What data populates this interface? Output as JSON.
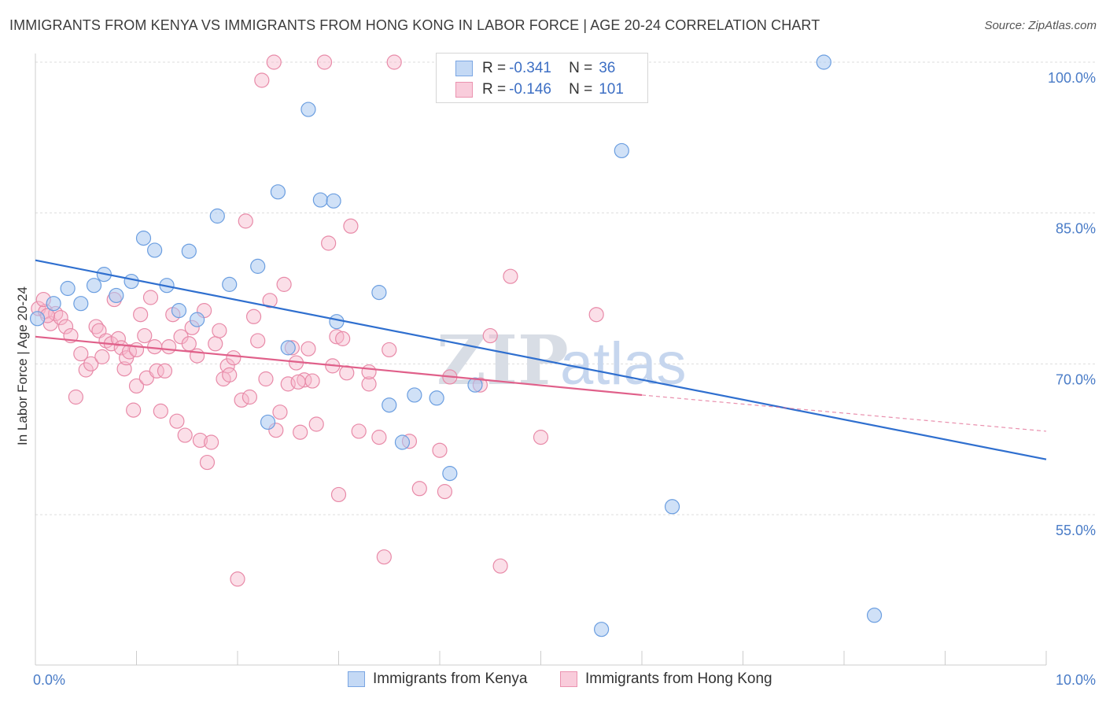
{
  "header": {
    "title": "IMMIGRANTS FROM KENYA VS IMMIGRANTS FROM HONG KONG IN LABOR FORCE | AGE 20-24 CORRELATION CHART",
    "source": "Source: ZipAtlas.com"
  },
  "watermark": {
    "zip": "ZIP",
    "atlas": "atlas"
  },
  "legend": {
    "kenya": {
      "r_label": "R =",
      "r_value": "-0.341",
      "n_label": "N =",
      "n_value": "36"
    },
    "hongkong": {
      "r_label": "R =",
      "r_value": "-0.146",
      "n_label": "N =",
      "n_value": "101"
    }
  },
  "bottom_legend": {
    "kenya": "Immigrants from Kenya",
    "hongkong": "Immigrants from Hong Kong"
  },
  "colors": {
    "kenya_fill": "#aac8f0",
    "kenya_stroke": "#6b9ee0",
    "kenya_line": "#2f6fcf",
    "hk_fill": "#f6b8cc",
    "hk_stroke": "#e88aa8",
    "hk_line": "#e0608a",
    "axis_text": "#4a7cc7",
    "grid": "#dddddd"
  },
  "chart_data": {
    "type": "scatter",
    "title": "IMMIGRANTS FROM KENYA VS IMMIGRANTS FROM HONG KONG IN LABOR FORCE | AGE 20-24 CORRELATION CHART",
    "xlabel": "",
    "ylabel": "In Labor Force | Age 20-24",
    "xlim": [
      0,
      10
    ],
    "ylim": [
      40,
      101
    ],
    "x_tick_labels": [
      "0.0%",
      "10.0%"
    ],
    "y_ticks": [
      55,
      70,
      85,
      100
    ],
    "y_tick_labels": [
      "55.0%",
      "70.0%",
      "85.0%",
      "100.0%"
    ],
    "series": [
      {
        "name": "Immigrants from Kenya",
        "points": [
          [
            0.02,
            74.5
          ],
          [
            0.18,
            76.0
          ],
          [
            0.32,
            77.5
          ],
          [
            0.45,
            76.0
          ],
          [
            0.58,
            77.8
          ],
          [
            0.68,
            78.9
          ],
          [
            0.8,
            76.8
          ],
          [
            0.95,
            78.2
          ],
          [
            1.07,
            82.5
          ],
          [
            1.18,
            81.3
          ],
          [
            1.3,
            77.8
          ],
          [
            1.42,
            75.3
          ],
          [
            1.52,
            81.2
          ],
          [
            1.6,
            74.4
          ],
          [
            1.8,
            84.7
          ],
          [
            1.92,
            77.9
          ],
          [
            2.2,
            79.7
          ],
          [
            2.3,
            64.2
          ],
          [
            2.4,
            87.1
          ],
          [
            2.5,
            71.6
          ],
          [
            2.7,
            95.3
          ],
          [
            2.82,
            86.3
          ],
          [
            2.95,
            86.2
          ],
          [
            2.98,
            74.2
          ],
          [
            3.4,
            77.1
          ],
          [
            3.5,
            65.9
          ],
          [
            3.63,
            62.2
          ],
          [
            3.75,
            66.9
          ],
          [
            3.97,
            66.6
          ],
          [
            4.1,
            59.1
          ],
          [
            4.35,
            67.9
          ],
          [
            5.8,
            91.2
          ],
          [
            6.3,
            55.8
          ],
          [
            7.8,
            100.0
          ],
          [
            8.3,
            45.0
          ],
          [
            5.6,
            43.6
          ]
        ],
        "trend": {
          "x": [
            0,
            10
          ],
          "y": [
            80.3,
            60.5
          ]
        }
      },
      {
        "name": "Immigrants from Hong Kong",
        "points": [
          [
            0.03,
            75.5
          ],
          [
            0.1,
            75.2
          ],
          [
            0.15,
            74.0
          ],
          [
            0.2,
            75.0
          ],
          [
            0.25,
            74.6
          ],
          [
            0.3,
            73.7
          ],
          [
            0.35,
            72.8
          ],
          [
            0.4,
            66.7
          ],
          [
            0.45,
            71.0
          ],
          [
            0.5,
            69.4
          ],
          [
            0.55,
            70.0
          ],
          [
            0.6,
            73.7
          ],
          [
            0.63,
            73.3
          ],
          [
            0.66,
            70.7
          ],
          [
            0.7,
            72.3
          ],
          [
            0.75,
            72.0
          ],
          [
            0.78,
            76.4
          ],
          [
            0.82,
            72.5
          ],
          [
            0.85,
            71.6
          ],
          [
            0.88,
            69.5
          ],
          [
            0.9,
            70.6
          ],
          [
            0.93,
            71.2
          ],
          [
            0.97,
            65.4
          ],
          [
            1.0,
            67.8
          ],
          [
            1.04,
            74.9
          ],
          [
            1.08,
            72.8
          ],
          [
            1.1,
            68.6
          ],
          [
            1.14,
            76.6
          ],
          [
            1.18,
            71.7
          ],
          [
            1.2,
            69.3
          ],
          [
            1.24,
            65.3
          ],
          [
            1.28,
            69.3
          ],
          [
            1.32,
            71.7
          ],
          [
            1.36,
            74.9
          ],
          [
            1.4,
            64.3
          ],
          [
            1.44,
            72.7
          ],
          [
            1.48,
            62.9
          ],
          [
            1.52,
            72.0
          ],
          [
            1.55,
            73.6
          ],
          [
            1.6,
            70.8
          ],
          [
            1.63,
            62.4
          ],
          [
            1.67,
            75.3
          ],
          [
            1.7,
            60.2
          ],
          [
            1.74,
            62.2
          ],
          [
            1.78,
            72.0
          ],
          [
            1.82,
            73.3
          ],
          [
            1.86,
            68.5
          ],
          [
            1.9,
            69.8
          ],
          [
            1.92,
            68.9
          ],
          [
            1.96,
            70.6
          ],
          [
            2.0,
            48.6
          ],
          [
            2.04,
            66.4
          ],
          [
            2.08,
            84.2
          ],
          [
            2.12,
            66.7
          ],
          [
            2.16,
            74.7
          ],
          [
            2.2,
            72.3
          ],
          [
            2.24,
            98.2
          ],
          [
            2.28,
            68.5
          ],
          [
            2.32,
            76.3
          ],
          [
            2.36,
            100.0
          ],
          [
            2.38,
            63.4
          ],
          [
            2.42,
            65.2
          ],
          [
            2.46,
            77.9
          ],
          [
            2.5,
            68.0
          ],
          [
            2.54,
            71.6
          ],
          [
            2.58,
            70.1
          ],
          [
            2.62,
            63.2
          ],
          [
            2.66,
            68.4
          ],
          [
            2.7,
            71.5
          ],
          [
            2.74,
            68.3
          ],
          [
            2.78,
            64.0
          ],
          [
            2.86,
            100.0
          ],
          [
            2.9,
            82.0
          ],
          [
            2.94,
            69.8
          ],
          [
            2.98,
            72.7
          ],
          [
            3.0,
            57.0
          ],
          [
            3.04,
            72.5
          ],
          [
            3.08,
            69.1
          ],
          [
            3.12,
            83.7
          ],
          [
            3.2,
            63.3
          ],
          [
            3.3,
            68.0
          ],
          [
            3.4,
            62.7
          ],
          [
            3.45,
            50.8
          ],
          [
            3.5,
            71.4
          ],
          [
            3.55,
            100.0
          ],
          [
            3.7,
            62.3
          ],
          [
            3.8,
            57.6
          ],
          [
            4.0,
            61.4
          ],
          [
            4.05,
            57.3
          ],
          [
            4.1,
            68.7
          ],
          [
            4.4,
            67.9
          ],
          [
            4.5,
            72.8
          ],
          [
            4.6,
            49.9
          ],
          [
            4.7,
            78.7
          ],
          [
            5.0,
            62.7
          ],
          [
            5.55,
            74.9
          ],
          [
            0.08,
            76.4
          ],
          [
            0.12,
            74.8
          ],
          [
            1.0,
            71.4
          ],
          [
            2.6,
            68.2
          ],
          [
            3.3,
            69.2
          ]
        ],
        "trend": {
          "x": [
            0,
            6
          ],
          "y": [
            72.7,
            66.9
          ]
        },
        "trend_extension": {
          "x": [
            6,
            10
          ],
          "y": [
            66.9,
            63.3
          ]
        }
      }
    ]
  }
}
